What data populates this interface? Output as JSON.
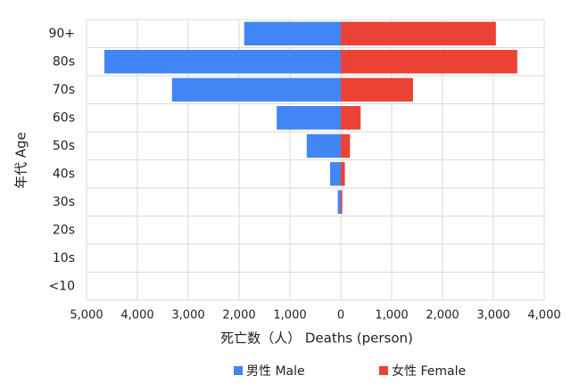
{
  "chart_data": {
    "type": "pyramid",
    "xlabel": "死亡数（人） Deaths (person)",
    "ylabel": "年代 Age",
    "categories": [
      "90+",
      "80s",
      "70s",
      "60s",
      "50s",
      "40s",
      "30s",
      "20s",
      "10s",
      "<10"
    ],
    "series": [
      {
        "name": "男性 Male",
        "color": "#4285f4",
        "values": [
          -1900,
          -4650,
          -3320,
          -1260,
          -670,
          -210,
          -60,
          0,
          0,
          0
        ]
      },
      {
        "name": "女性 Female",
        "color": "#ea4335",
        "values": [
          3050,
          3470,
          1420,
          390,
          180,
          80,
          30,
          0,
          0,
          0
        ]
      }
    ],
    "xlim": [
      -5000,
      4000
    ],
    "xticks": [
      {
        "value": -5000,
        "label": "5,000"
      },
      {
        "value": -4000,
        "label": "4,000"
      },
      {
        "value": -3000,
        "label": "3,000"
      },
      {
        "value": -2000,
        "label": "2,000"
      },
      {
        "value": -1000,
        "label": "1,000"
      },
      0,
      {
        "value": 1000,
        "label": "1,000"
      },
      {
        "value": 2000,
        "label": "2,000"
      },
      {
        "value": 3000,
        "label": "3,000"
      },
      {
        "value": 4000,
        "label": "4,000"
      }
    ],
    "grid": true,
    "legend": "bottom"
  }
}
